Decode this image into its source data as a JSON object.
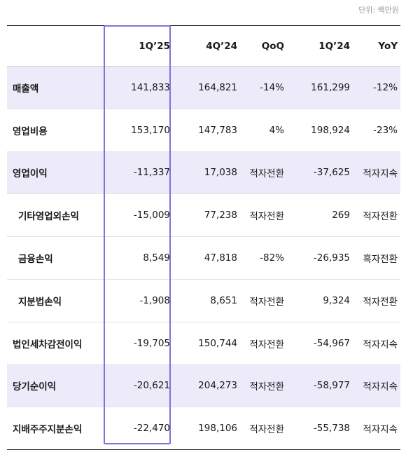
{
  "unit": "단위: 백만원",
  "header": {
    "c1": "1Q’25",
    "c2": "4Q’24",
    "c3": "QoQ",
    "c4": "1Q’24",
    "c5": "YoY"
  },
  "rows": [
    {
      "label": "매출액",
      "c1": "141,833",
      "c2": "164,821",
      "c3": "-14%",
      "c4": "161,299",
      "c5": "-12%"
    },
    {
      "label": "영업비용",
      "c1": "153,170",
      "c2": "147,783",
      "c3": "4%",
      "c4": "198,924",
      "c5": "-23%"
    },
    {
      "label": "영업이익",
      "c1": "-11,337",
      "c2": "17,038",
      "c3": "적자전환",
      "c4": "-37,625",
      "c5": "적자지속"
    },
    {
      "label": "기타영업외손익",
      "c1": "-15,009",
      "c2": "77,238",
      "c3": "적자전환",
      "c4": "269",
      "c5": "적자전환"
    },
    {
      "label": "금융손익",
      "c1": "8,549",
      "c2": "47,818",
      "c3": "-82%",
      "c4": "-26,935",
      "c5": "흑자전환"
    },
    {
      "label": "지분법손익",
      "c1": "-1,908",
      "c2": "8,651",
      "c3": "적자전환",
      "c4": "9,324",
      "c5": "적자전환"
    },
    {
      "label": "법인세차감전이익",
      "c1": "-19,705",
      "c2": "150,744",
      "c3": "적자전환",
      "c4": "-54,967",
      "c5": "적자지속"
    },
    {
      "label": "당기순이익",
      "c1": "-20,621",
      "c2": "204,273",
      "c3": "적자전환",
      "c4": "-58,977",
      "c5": "적자지속"
    },
    {
      "label": "지배주주지분손익",
      "c1": "-22,470",
      "c2": "198,106",
      "c3": "적자전환",
      "c4": "-55,738",
      "c5": "적자지속"
    }
  ],
  "colors": {
    "shade": "#edeaf9",
    "highlight": "#8a6ddc"
  }
}
